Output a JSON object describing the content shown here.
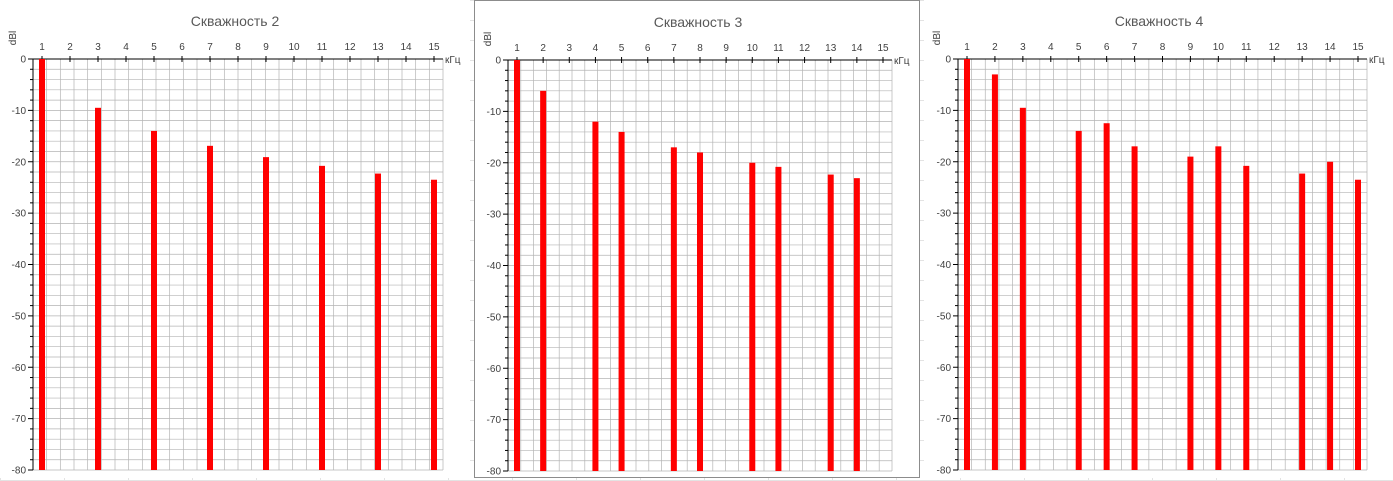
{
  "colors": {
    "bar": "#ff0000",
    "grid": "#b4b4b4",
    "axis": "#000000",
    "text": "#404040"
  },
  "chart_data": [
    {
      "type": "bar",
      "title": "Скважность 2",
      "ylabel": "dBl",
      "xunit": "кГц",
      "categories": [
        "1",
        "2",
        "3",
        "4",
        "5",
        "6",
        "7",
        "8",
        "9",
        "10",
        "11",
        "12",
        "13",
        "14",
        "15"
      ],
      "ylim": [
        -80,
        0
      ],
      "yticks": [
        "0",
        "-10",
        "-20",
        "-30",
        "-40",
        "-50",
        "-60",
        "-70",
        "-80"
      ],
      "grid": true,
      "series": [
        {
          "values": [
            0,
            null,
            -9.5,
            null,
            -14,
            null,
            -16.9,
            null,
            -19.1,
            null,
            -20.8,
            null,
            -22.3,
            null,
            -23.5
          ]
        }
      ]
    },
    {
      "type": "bar",
      "title": "Скважность 3",
      "ylabel": "dBl",
      "xunit": "кГц",
      "categories": [
        "1",
        "2",
        "3",
        "4",
        "5",
        "6",
        "7",
        "8",
        "9",
        "10",
        "11",
        "12",
        "13",
        "14",
        "15"
      ],
      "ylim": [
        -80,
        0
      ],
      "yticks": [
        "0",
        "-10",
        "-20",
        "-30",
        "-40",
        "-50",
        "-60",
        "-70",
        "-80"
      ],
      "grid": true,
      "series": [
        {
          "values": [
            0,
            -6,
            null,
            -12,
            -14,
            null,
            -17,
            -18,
            null,
            -20,
            -20.8,
            null,
            -22.3,
            -23,
            null
          ]
        }
      ]
    },
    {
      "type": "bar",
      "title": "Скважность 4",
      "ylabel": "dBl",
      "xunit": "кГц",
      "categories": [
        "1",
        "2",
        "3",
        "4",
        "5",
        "6",
        "7",
        "8",
        "9",
        "10",
        "11",
        "12",
        "13",
        "14",
        "15"
      ],
      "ylim": [
        -80,
        0
      ],
      "yticks": [
        "0",
        "-10",
        "-20",
        "-30",
        "-40",
        "-50",
        "-60",
        "-70",
        "-80"
      ],
      "grid": true,
      "series": [
        {
          "values": [
            0,
            -3,
            -9.5,
            null,
            -14,
            -12.5,
            -17,
            null,
            -19,
            -17,
            -20.8,
            null,
            -22.3,
            -20,
            -23.5
          ]
        }
      ]
    }
  ]
}
